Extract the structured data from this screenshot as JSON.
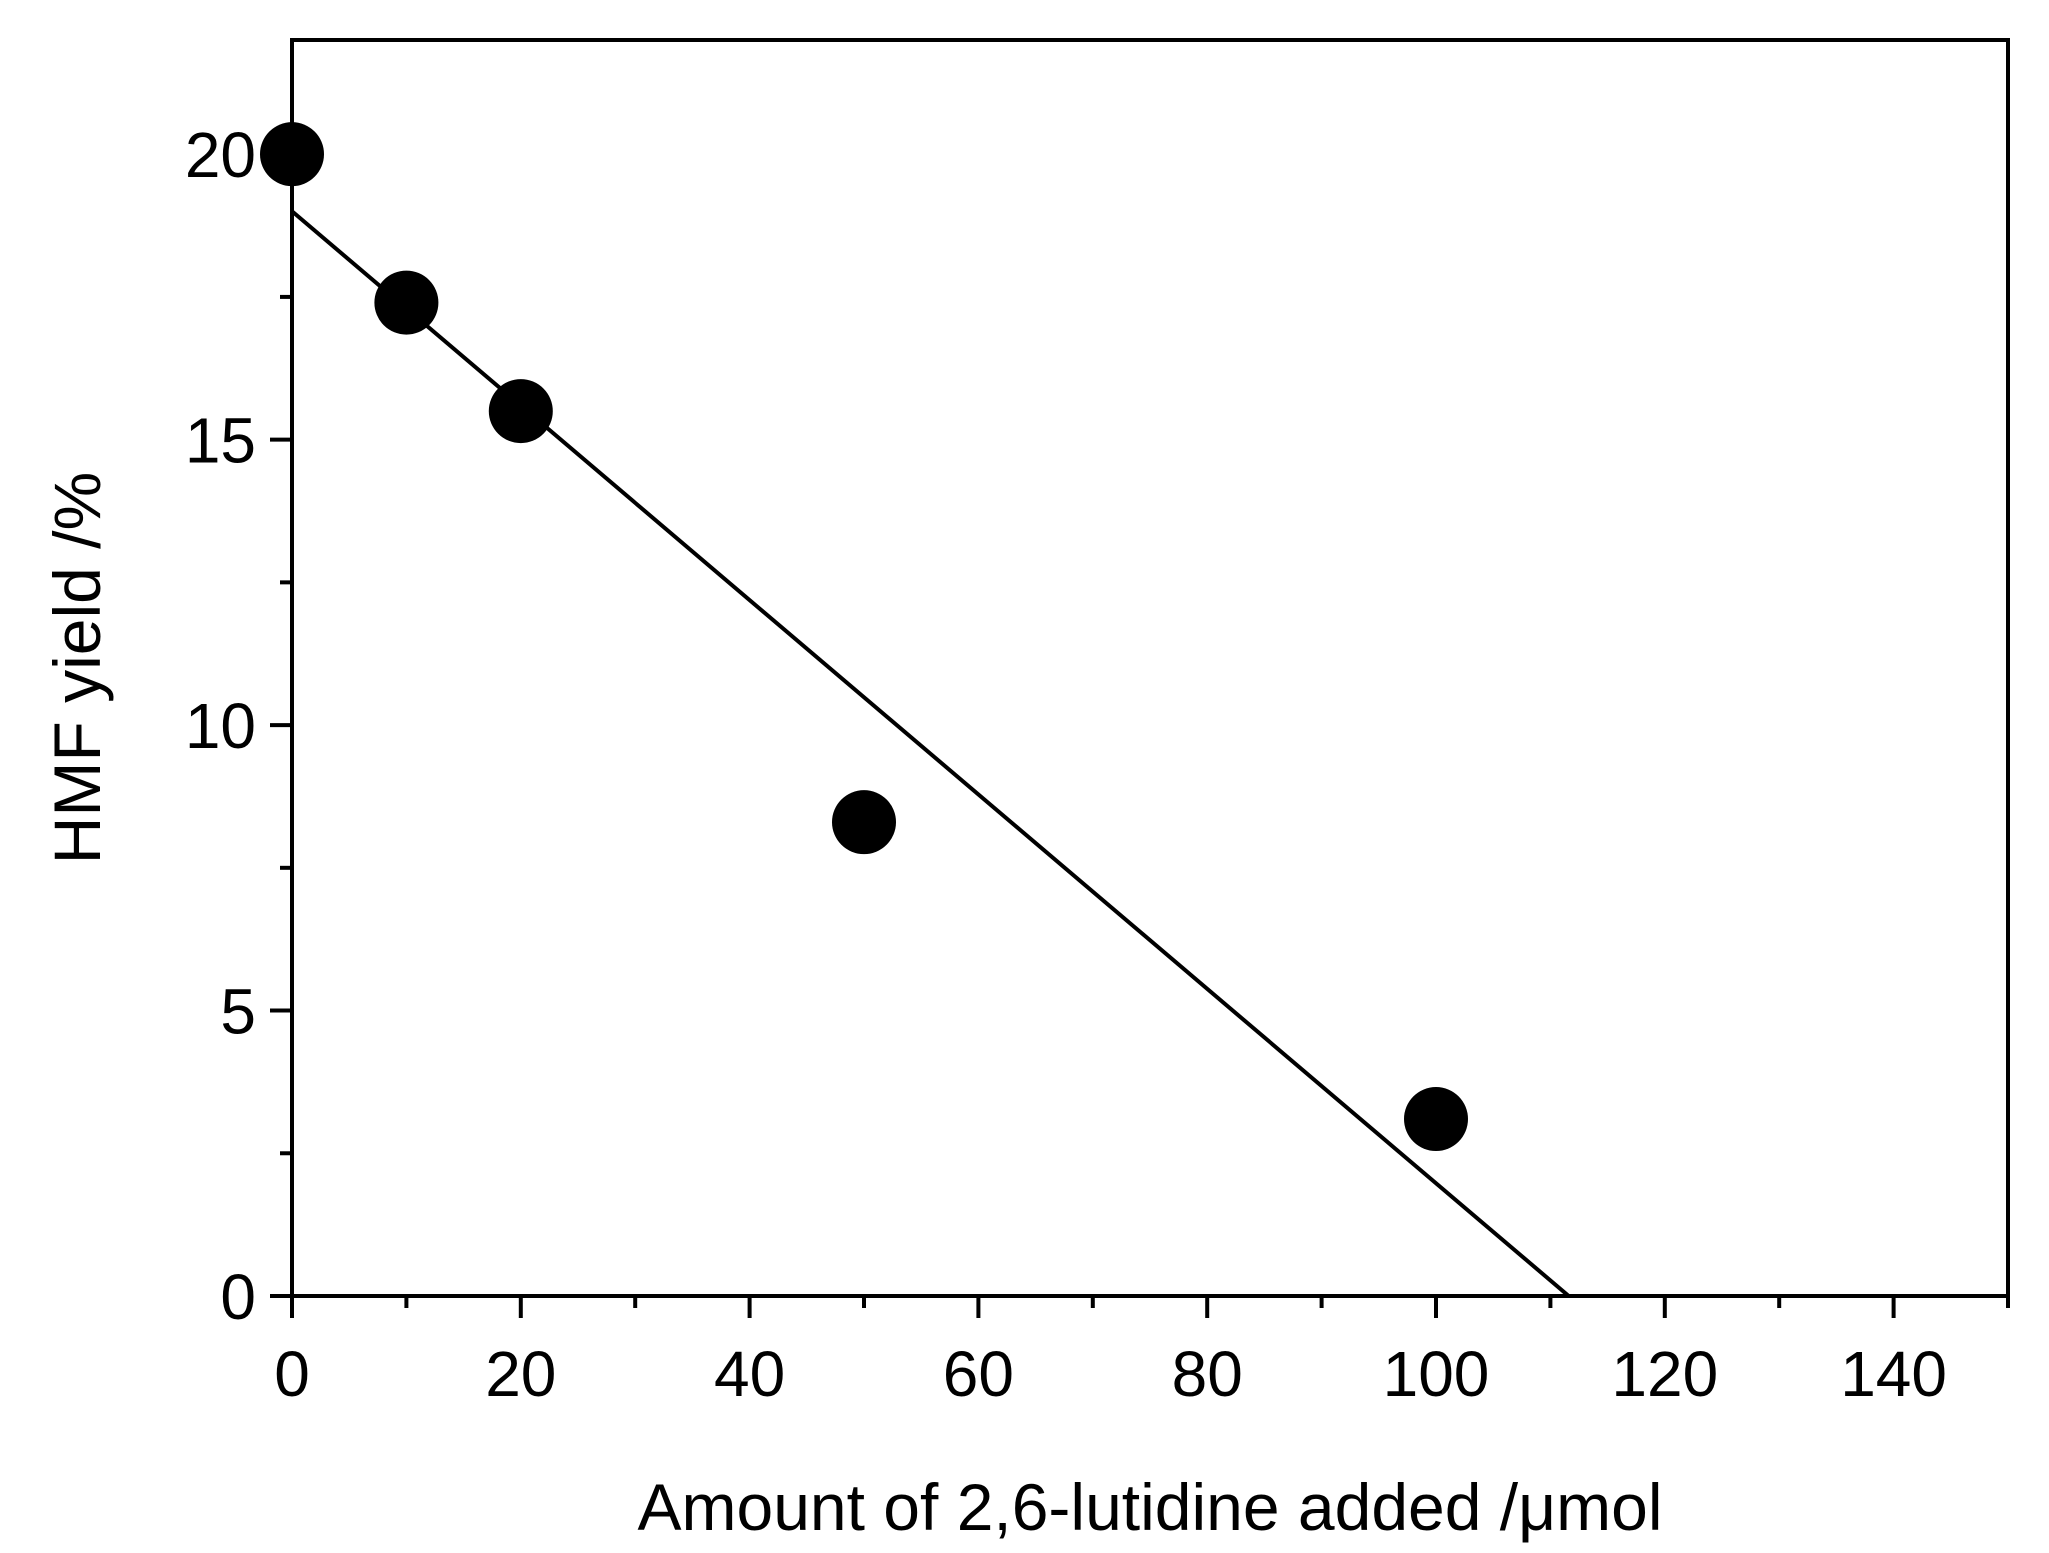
{
  "chart_data": {
    "type": "scatter",
    "xlabel": "Amount of 2,6-lutidine added /μmol",
    "ylabel": "HMF yield /%",
    "xlim": [
      0,
      150
    ],
    "ylim": [
      0,
      22
    ],
    "x_ticks": [
      0,
      20,
      40,
      60,
      80,
      100,
      120,
      140
    ],
    "x_tick_labels": [
      "0",
      "20",
      "40",
      "60",
      "80",
      "100",
      "120",
      "140"
    ],
    "x_minor_ticks": [
      10,
      30,
      50,
      70,
      90,
      110,
      130,
      150
    ],
    "y_ticks": [
      0,
      5,
      10,
      15,
      20
    ],
    "y_tick_labels": [
      "0",
      "5",
      "10",
      "15",
      "20"
    ],
    "y_minor_ticks": [
      2.5,
      7.5,
      12.5,
      17.5
    ],
    "grid": false,
    "legend": "none",
    "series": [
      {
        "marker": "filled-circle",
        "color": "#000000",
        "points": [
          {
            "x": 0,
            "y": 20.0
          },
          {
            "x": 10,
            "y": 17.4
          },
          {
            "x": 20,
            "y": 15.5
          },
          {
            "x": 50,
            "y": 8.3
          },
          {
            "x": 100,
            "y": 3.1
          }
        ]
      }
    ],
    "fit_line": {
      "color": "#000000",
      "points": [
        {
          "x": 0,
          "y": 19.0
        },
        {
          "x": 111.6,
          "y": 0
        }
      ]
    }
  }
}
